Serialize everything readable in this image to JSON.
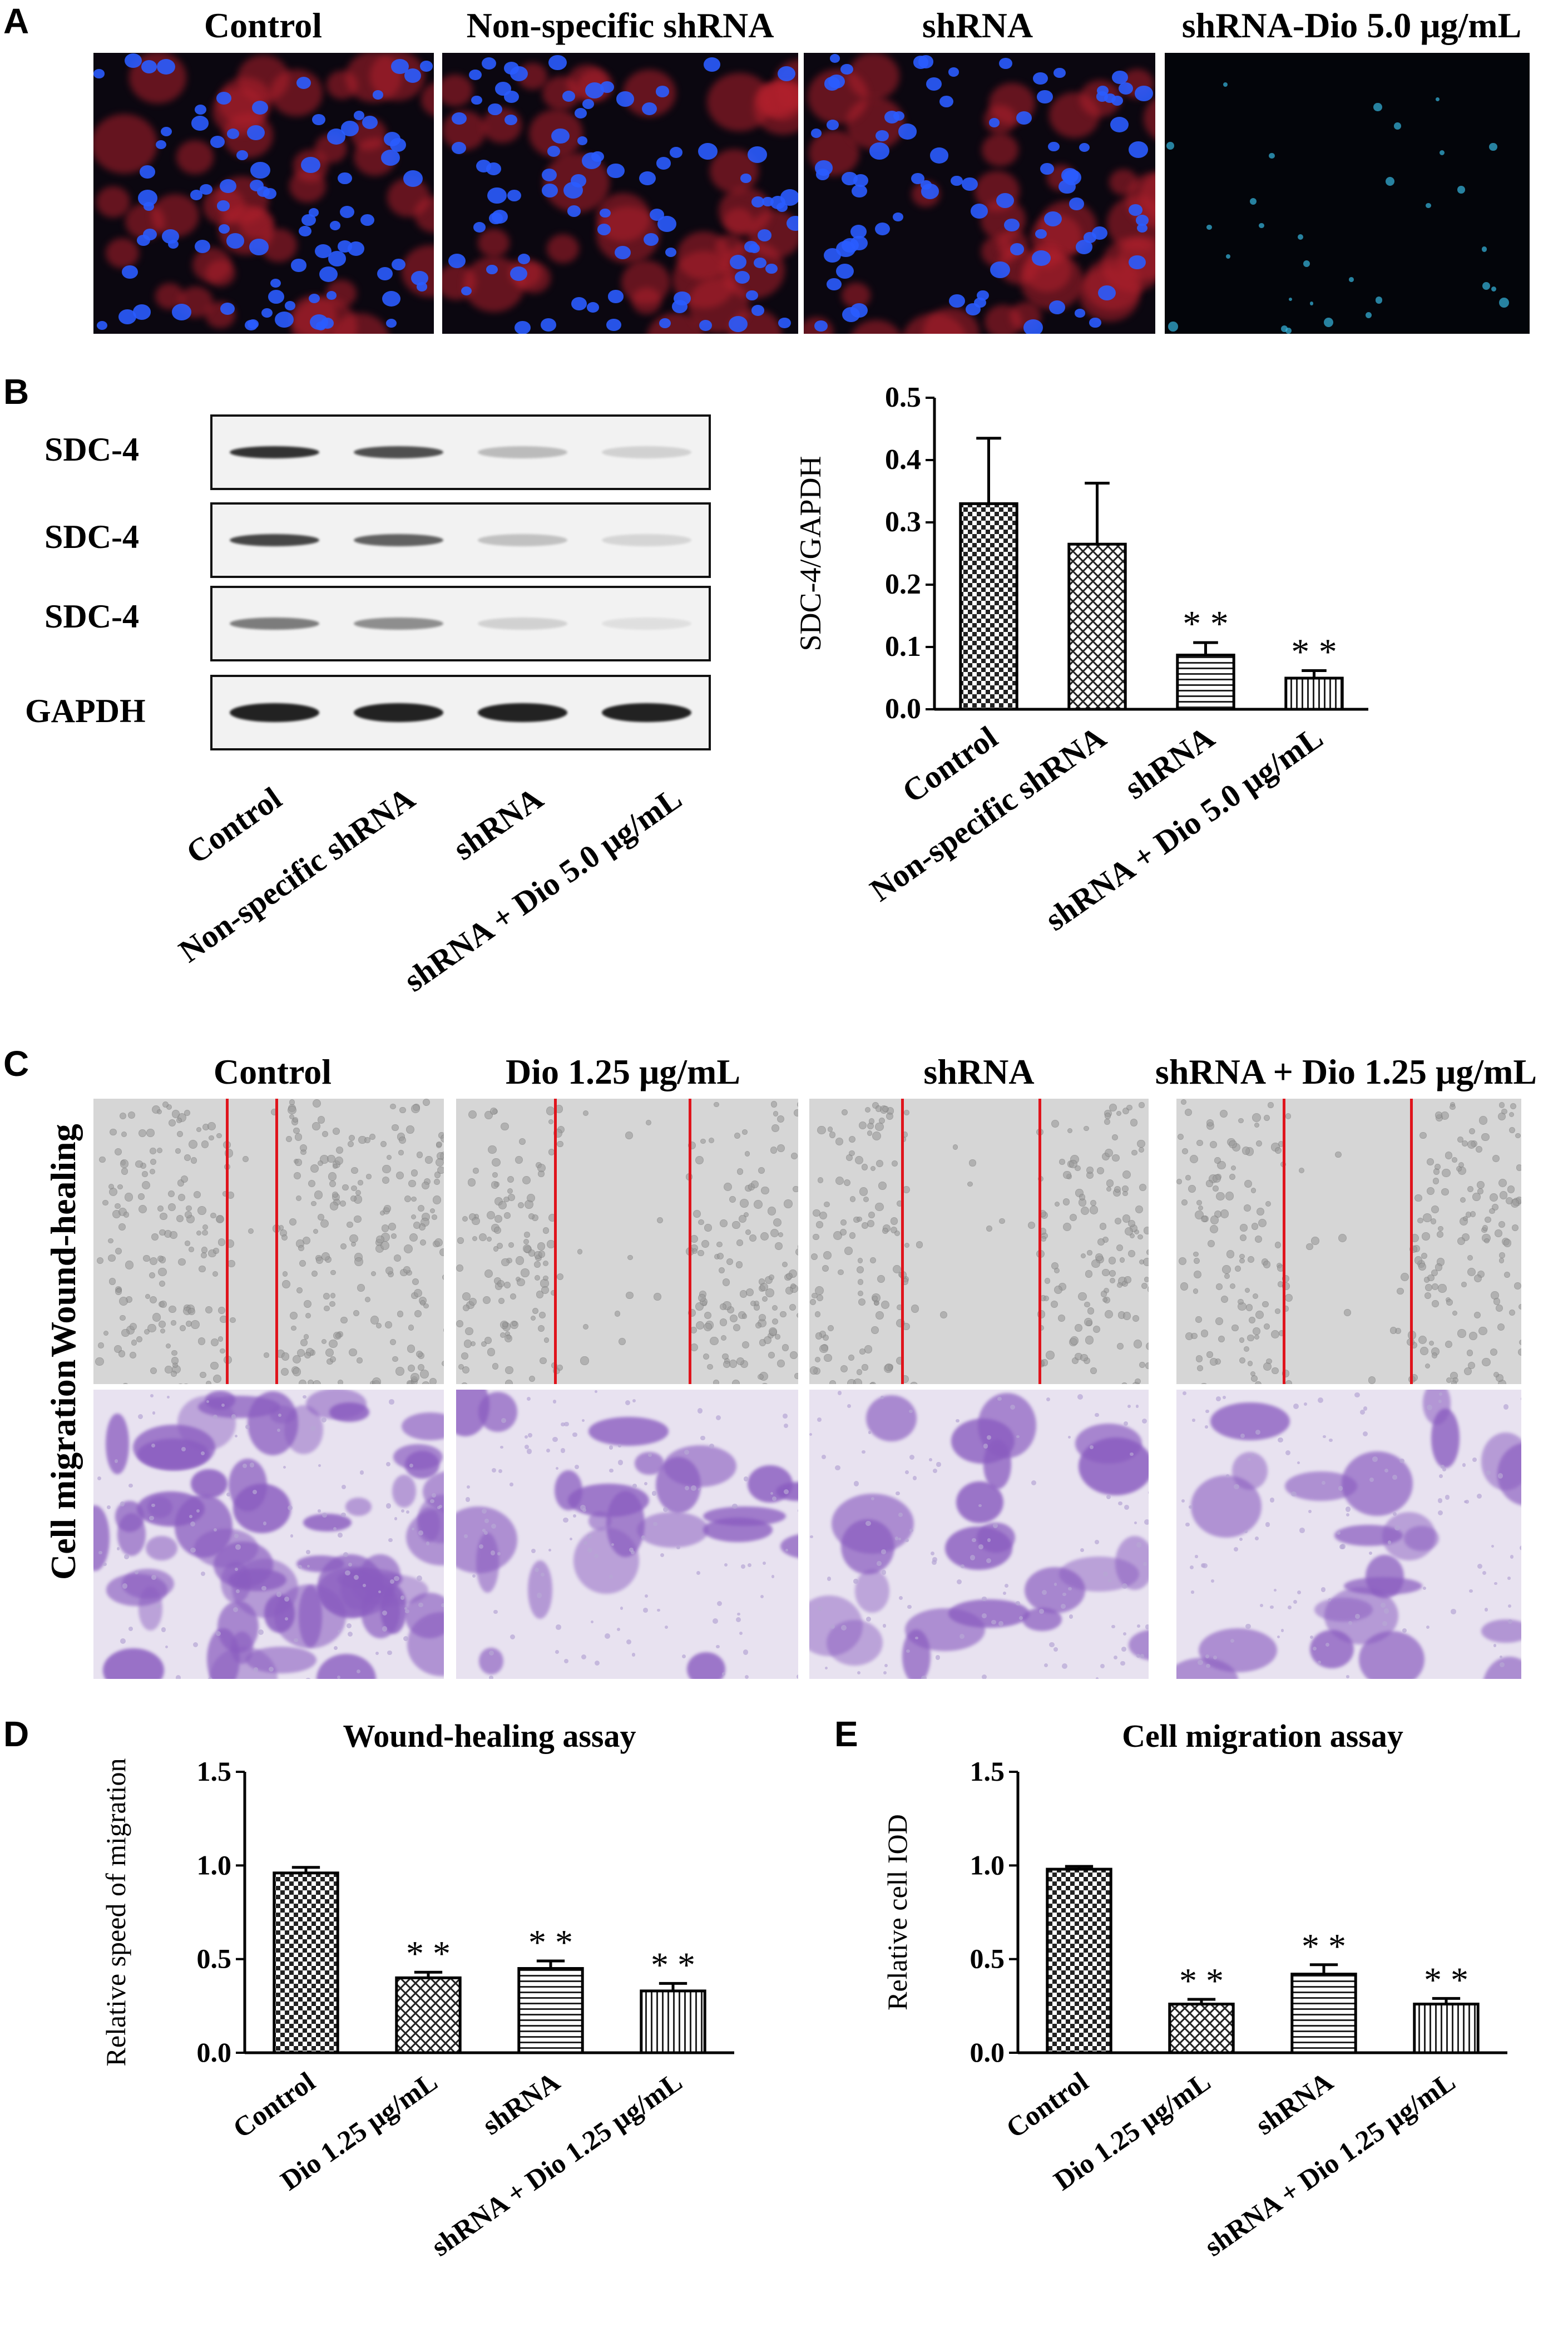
{
  "panel_letters": [
    "A",
    "B",
    "C",
    "D",
    "E"
  ],
  "panel_a": {
    "columns": [
      "Control",
      "Non-specific shRNA",
      "shRNA",
      "shRNA-Dio 5.0 μg/mL"
    ]
  },
  "panel_b": {
    "blot_rows": [
      "SDC-4",
      "SDC-4",
      "SDC-4",
      "GAPDH"
    ],
    "lane_labels": [
      "Control",
      "Non-specific shRNA",
      "shRNA",
      "shRNA + Dio 5.0 μg/mL"
    ]
  },
  "panel_c": {
    "columns": [
      "Control",
      "Dio 1.25 μg/mL",
      "shRNA",
      "shRNA + Dio 1.25 μg/mL"
    ],
    "rows": [
      "Wound-healing",
      "Cell migration"
    ]
  },
  "chart_data": [
    {
      "type": "bar",
      "panel": "B",
      "title": "",
      "ylabel": "SDC-4/GAPDH",
      "xlabel": "",
      "categories": [
        "Control",
        "Non-specific shRNA",
        "shRNA",
        "shRNA + Dio 5.0 μg/mL"
      ],
      "values": [
        0.33,
        0.265,
        0.087,
        0.05
      ],
      "errors": [
        0.105,
        0.098,
        0.02,
        0.012
      ],
      "significance": [
        "",
        "",
        "**",
        "**"
      ],
      "ylim": [
        0,
        0.5
      ],
      "yticks": [
        "0.0",
        "0.1",
        "0.2",
        "0.3",
        "0.4",
        "0.5"
      ]
    },
    {
      "type": "bar",
      "panel": "D",
      "title": "Wound-healing assay",
      "ylabel": "Relative speed of migration",
      "xlabel": "",
      "categories": [
        "Control",
        "Dio 1.25 μg/mL",
        "shRNA",
        "shRNA + Dio 1.25 μg/mL"
      ],
      "values": [
        0.96,
        0.4,
        0.45,
        0.33
      ],
      "errors": [
        0.03,
        0.03,
        0.04,
        0.04
      ],
      "significance": [
        "",
        "**",
        "**",
        "**"
      ],
      "ylim": [
        0,
        1.5
      ],
      "yticks": [
        "0.0",
        "0.5",
        "1.0",
        "1.5"
      ]
    },
    {
      "type": "bar",
      "panel": "E",
      "title": "Cell migration assay",
      "ylabel": "Relative cell IOD",
      "xlabel": "",
      "categories": [
        "Control",
        "Dio 1.25 μg/mL",
        "shRNA",
        "shRNA + Dio 1.25 μg/mL"
      ],
      "values": [
        0.98,
        0.26,
        0.42,
        0.26
      ],
      "errors": [
        0.015,
        0.025,
        0.05,
        0.03
      ],
      "significance": [
        "",
        "**",
        "**",
        "**"
      ],
      "ylim": [
        0,
        1.5
      ],
      "yticks": [
        "0.0",
        "0.5",
        "1.0",
        "1.5"
      ]
    }
  ],
  "colors": {
    "nuclei": "#2a5cff",
    "cytoplasm": "#b0202c",
    "wound_line": "#e0141c",
    "crystal_violet": "#8a5cc0"
  }
}
